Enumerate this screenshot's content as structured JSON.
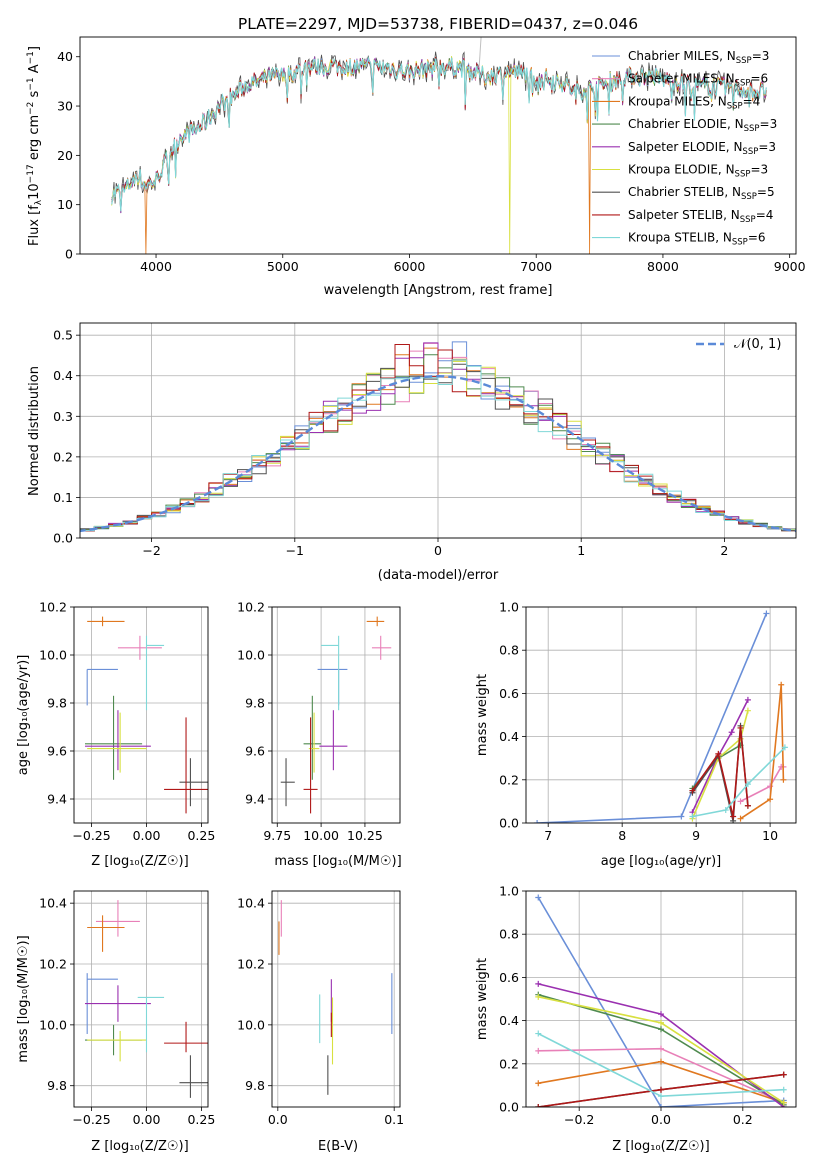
{
  "title": "PLATE=2297, MJD=53738, FIBERID=0437, z=0.046",
  "colors": {
    "Chabrier MILES": "#6a8fd8",
    "Salpeter MILES": "#e880b8",
    "Kroupa MILES": "#e07820",
    "Chabrier ELODIE": "#4f8a4f",
    "Salpeter ELODIE": "#9a30b0",
    "Kroupa ELODIE": "#d8e040",
    "Chabrier STELIB": "#505050",
    "Salpeter STELIB": "#b01818",
    "Kroupa STELIB": "#80d8d8"
  },
  "spectrum": {
    "xlabel": "wavelength [Angstrom, rest frame]",
    "ylabel": "Flux [f",
    "ylabel_sub": "λ",
    "ylabel_rest1": "10",
    "ylabel_exp1": "−17",
    "ylabel_rest2": " erg cm",
    "ylabel_exp2": "−2",
    "ylabel_rest3": " s",
    "ylabel_exp3": "−1",
    "ylabel_rest4": " A",
    "ylabel_exp4": "−1",
    "ylabel_end": "]",
    "xticks": [
      "4000",
      "5000",
      "6000",
      "7000",
      "8000",
      "9000"
    ],
    "yticks": [
      "0",
      "10",
      "20",
      "30",
      "40"
    ],
    "legend": [
      {
        "model": "Chabrier MILES",
        "n": "3"
      },
      {
        "model": "Salpeter MILES",
        "n": "6"
      },
      {
        "model": "Kroupa MILES",
        "n": "4"
      },
      {
        "model": "Chabrier ELODIE",
        "n": "3"
      },
      {
        "model": "Salpeter ELODIE",
        "n": "3"
      },
      {
        "model": "Kroupa ELODIE",
        "n": "3"
      },
      {
        "model": "Chabrier STELIB",
        "n": "5"
      },
      {
        "model": "Salpeter STELIB",
        "n": "4"
      },
      {
        "model": "Kroupa STELIB",
        "n": "6"
      }
    ],
    "legend_n_prefix": "N",
    "legend_n_sub": "SSP"
  },
  "residuals": {
    "xlabel": "(data-model)/error",
    "ylabel": "Normed distribution",
    "legend_label": "𝒩(0, 1)",
    "xticks": [
      "−2",
      "−1",
      "0",
      "1",
      "2"
    ],
    "yticks": [
      "0.0",
      "0.1",
      "0.2",
      "0.3",
      "0.4",
      "0.5"
    ]
  },
  "age_z": {
    "xlabel": "Z [log₁₀(Z/Z☉)]",
    "ylabel": "age  [log₁₀(age/yr)]",
    "xticks": [
      "−0.25",
      "0.00",
      "0.25"
    ],
    "yticks": [
      "9.4",
      "9.6",
      "9.8",
      "10.0",
      "10.2"
    ]
  },
  "age_mass": {
    "xlabel": "mass [log₁₀(M/M☉)]",
    "xticks": [
      "9.75",
      "10.00",
      "10.25"
    ],
    "yticks": [
      "9.4",
      "9.6",
      "9.8",
      "10.0",
      "10.2"
    ]
  },
  "mw_age": {
    "xlabel": "age  [log₁₀(age/yr)]",
    "ylabel": "mass weight",
    "xticks": [
      "7",
      "8",
      "9",
      "10"
    ],
    "yticks": [
      "0.0",
      "0.2",
      "0.4",
      "0.6",
      "0.8",
      "1.0"
    ]
  },
  "mass_z": {
    "xlabel": "Z [log₁₀(Z/Z☉)]",
    "ylabel": "mass [log₁₀(M/M☉)]",
    "xticks": [
      "−0.25",
      "0.00",
      "0.25"
    ],
    "yticks": [
      "9.8",
      "10.0",
      "10.2",
      "10.4"
    ]
  },
  "mass_ebv": {
    "xlabel": "E(B-V)",
    "xticks": [
      "0.0",
      "0.1"
    ],
    "yticks": [
      "9.8",
      "10.0",
      "10.2",
      "10.4"
    ]
  },
  "mw_z": {
    "xlabel": "Z [log₁₀(Z/Z☉)]",
    "ylabel": "mass weight",
    "xticks": [
      "−0.2",
      "0.0",
      "0.2"
    ],
    "yticks": [
      "0.0",
      "0.2",
      "0.4",
      "0.6",
      "0.8",
      "1.0"
    ]
  },
  "chart_data": [
    {
      "type": "line",
      "title": "PLATE=2297, MJD=53738, FIBERID=0437, z=0.046",
      "xlabel": "wavelength [Angstrom, rest frame]",
      "ylabel": "Flux [fλ10−17 erg cm−2 s−1 A−1]",
      "xlim": [
        3400,
        9050
      ],
      "ylim": [
        0,
        44
      ],
      "continuum": {
        "x": [
          3650,
          3750,
          3850,
          3920,
          4000,
          4100,
          4200,
          4300,
          4400,
          4500,
          4600,
          4700,
          4800,
          4900,
          5000,
          5200,
          5400,
          5600,
          5800,
          6000,
          6200,
          6400,
          6600,
          6800,
          7000,
          7200,
          7300,
          7500,
          7700,
          7900,
          8100,
          8300,
          8500,
          8700,
          8820
        ],
        "y": [
          12,
          13,
          16,
          14,
          15,
          20,
          24,
          25,
          27,
          30,
          32,
          34,
          35,
          36,
          36,
          38,
          38,
          38,
          38,
          37,
          38,
          38,
          36,
          37,
          36,
          35,
          33,
          34,
          36,
          36,
          35,
          34,
          34,
          33,
          33
        ]
      },
      "dips": [
        {
          "x": 3920,
          "series": "Kroupa MILES",
          "y": 0
        },
        {
          "x": 6790,
          "series": "Kroupa ELODIE",
          "y": 0
        },
        {
          "x": 7420,
          "series": "Kroupa MILES",
          "y": 0
        }
      ],
      "series": [
        "Chabrier MILES",
        "Salpeter MILES",
        "Kroupa MILES",
        "Chabrier ELODIE",
        "Salpeter ELODIE",
        "Kroupa ELODIE",
        "Chabrier STELIB",
        "Salpeter STELIB",
        "Kroupa STELIB"
      ]
    },
    {
      "type": "histogram",
      "xlabel": "(data-model)/error",
      "ylabel": "Normed distribution",
      "xlim": [
        -2.5,
        2.5
      ],
      "ylim": [
        0,
        0.53
      ],
      "bin_width": 0.1,
      "normal_curve": {
        "mean": 0,
        "sigma": 1
      }
    },
    {
      "type": "scatter",
      "xlabel": "Z [log10(Z/Zsun)]",
      "ylabel": "age [log10(age/yr)]",
      "xlim": [
        -0.33,
        0.28
      ],
      "ylim": [
        9.3,
        10.2
      ],
      "points": [
        {
          "series": "Chabrier MILES",
          "x": -0.27,
          "y": 9.94,
          "xerr": [
            0.0,
            0.14
          ],
          "yerr": [
            0.15,
            0.0
          ]
        },
        {
          "series": "Salpeter MILES",
          "x": -0.03,
          "y": 10.03,
          "xerr": [
            0.1,
            0.1
          ],
          "yerr": [
            0.05,
            0.05
          ]
        },
        {
          "series": "Kroupa MILES",
          "x": -0.2,
          "y": 10.14,
          "xerr": [
            0.07,
            0.1
          ],
          "yerr": [
            0.02,
            0.02
          ]
        },
        {
          "series": "Chabrier ELODIE",
          "x": -0.15,
          "y": 9.63,
          "xerr": [
            0.13,
            0.13
          ],
          "yerr": [
            0.15,
            0.2
          ]
        },
        {
          "series": "Salpeter ELODIE",
          "x": -0.13,
          "y": 9.62,
          "xerr": [
            0.15,
            0.15
          ],
          "yerr": [
            0.1,
            0.15
          ]
        },
        {
          "series": "Kroupa ELODIE",
          "x": -0.12,
          "y": 9.61,
          "xerr": [
            0.15,
            0.12
          ],
          "yerr": [
            0.1,
            0.15
          ]
        },
        {
          "series": "Chabrier STELIB",
          "x": 0.2,
          "y": 9.47,
          "xerr": [
            0.05,
            0.08
          ],
          "yerr": [
            0.1,
            0.1
          ]
        },
        {
          "series": "Salpeter STELIB",
          "x": 0.18,
          "y": 9.44,
          "xerr": [
            0.1,
            0.1
          ],
          "yerr": [
            0.1,
            0.3
          ]
        },
        {
          "series": "Kroupa STELIB",
          "x": 0.0,
          "y": 10.04,
          "xerr": [
            0.0,
            0.08
          ],
          "yerr": [
            0.27,
            0.04
          ]
        }
      ]
    },
    {
      "type": "scatter",
      "xlabel": "mass [log10(M/Msun)]",
      "ylim": [
        9.3,
        10.2
      ],
      "xlim": [
        9.72,
        10.45
      ],
      "points": [
        {
          "series": "Chabrier MILES",
          "x": 10.1,
          "y": 9.94,
          "xerr": [
            0.12,
            0.05
          ],
          "yerr": [
            0.15,
            0.0
          ]
        },
        {
          "series": "Salpeter MILES",
          "x": 10.34,
          "y": 10.03,
          "xerr": [
            0.05,
            0.06
          ],
          "yerr": [
            0.05,
            0.05
          ]
        },
        {
          "series": "Kroupa MILES",
          "x": 10.32,
          "y": 10.14,
          "xerr": [
            0.06,
            0.04
          ],
          "yerr": [
            0.02,
            0.02
          ]
        },
        {
          "series": "Chabrier ELODIE",
          "x": 9.95,
          "y": 9.63,
          "xerr": [
            0.05,
            0.05
          ],
          "yerr": [
            0.15,
            0.2
          ]
        },
        {
          "series": "Salpeter ELODIE",
          "x": 10.07,
          "y": 9.62,
          "xerr": [
            0.08,
            0.08
          ],
          "yerr": [
            0.1,
            0.15
          ]
        },
        {
          "series": "Kroupa ELODIE",
          "x": 9.96,
          "y": 9.61,
          "xerr": [
            0.03,
            0.03
          ],
          "yerr": [
            0.1,
            0.15
          ]
        },
        {
          "series": "Chabrier STELIB",
          "x": 9.8,
          "y": 9.47,
          "xerr": [
            0.03,
            0.05
          ],
          "yerr": [
            0.1,
            0.1
          ]
        },
        {
          "series": "Salpeter STELIB",
          "x": 9.94,
          "y": 9.44,
          "xerr": [
            0.04,
            0.04
          ],
          "yerr": [
            0.1,
            0.3
          ]
        },
        {
          "series": "Kroupa STELIB",
          "x": 10.1,
          "y": 10.04,
          "xerr": [
            0.1,
            0.0
          ],
          "yerr": [
            0.27,
            0.04
          ]
        }
      ]
    },
    {
      "type": "line",
      "xlabel": "age [log10(age/yr)]",
      "ylabel": "mass weight",
      "xlim": [
        6.7,
        10.35
      ],
      "ylim": [
        0,
        1
      ],
      "series": [
        {
          "name": "Chabrier MILES",
          "x": [
            6.85,
            8.8,
            9.95
          ],
          "y": [
            0.0,
            0.03,
            0.97
          ]
        },
        {
          "name": "Salpeter MILES",
          "x": [
            9.6,
            10.0,
            10.15,
            10.18
          ],
          "y": [
            0.1,
            0.17,
            0.26,
            0.26
          ]
        },
        {
          "name": "Kroupa MILES",
          "x": [
            9.6,
            10.0,
            10.15,
            10.18
          ],
          "y": [
            0.02,
            0.11,
            0.64,
            0.2
          ]
        },
        {
          "name": "Chabrier ELODIE",
          "x": [
            8.95,
            9.3,
            9.6
          ],
          "y": [
            0.16,
            0.3,
            0.36
          ]
        },
        {
          "name": "Salpeter ELODIE",
          "x": [
            8.95,
            9.3,
            9.48,
            9.7
          ],
          "y": [
            0.05,
            0.31,
            0.42,
            0.57
          ]
        },
        {
          "name": "Kroupa ELODIE",
          "x": [
            8.95,
            9.3,
            9.6,
            9.7
          ],
          "y": [
            0.02,
            0.3,
            0.39,
            0.52
          ]
        },
        {
          "name": "Chabrier STELIB",
          "x": [
            8.95,
            9.3,
            9.5,
            9.6,
            9.7
          ],
          "y": [
            0.14,
            0.31,
            0.01,
            0.45,
            0.08
          ]
        },
        {
          "name": "Salpeter STELIB",
          "x": [
            8.95,
            9.3,
            9.5,
            9.6,
            9.7
          ],
          "y": [
            0.15,
            0.32,
            0.03,
            0.44,
            0.08
          ]
        },
        {
          "name": "Kroupa STELIB",
          "x": [
            8.95,
            9.4,
            9.7,
            10.2
          ],
          "y": [
            0.03,
            0.06,
            0.18,
            0.35
          ]
        }
      ]
    },
    {
      "type": "scatter",
      "xlabel": "Z [log10(Z/Zsun)]",
      "ylabel": "mass [log10(M/Msun)]",
      "xlim": [
        -0.33,
        0.28
      ],
      "ylim": [
        9.73,
        10.44
      ],
      "points": [
        {
          "series": "Chabrier MILES",
          "x": -0.27,
          "y": 10.15,
          "xerr": [
            0.0,
            0.14
          ],
          "yerr": [
            0.18,
            0.02
          ]
        },
        {
          "series": "Salpeter MILES",
          "x": -0.13,
          "y": 10.34,
          "xerr": [
            0.1,
            0.1
          ],
          "yerr": [
            0.05,
            0.07
          ]
        },
        {
          "series": "Kroupa MILES",
          "x": -0.2,
          "y": 10.32,
          "xerr": [
            0.07,
            0.1
          ],
          "yerr": [
            0.08,
            0.04
          ]
        },
        {
          "series": "Chabrier ELODIE",
          "x": -0.15,
          "y": 9.95,
          "xerr": [
            0.13,
            0.13
          ],
          "yerr": [
            0.05,
            0.05
          ]
        },
        {
          "series": "Salpeter ELODIE",
          "x": -0.13,
          "y": 10.07,
          "xerr": [
            0.15,
            0.15
          ],
          "yerr": [
            0.06,
            0.06
          ]
        },
        {
          "series": "Kroupa ELODIE",
          "x": -0.12,
          "y": 9.95,
          "xerr": [
            0.15,
            0.12
          ],
          "yerr": [
            0.07,
            0.03
          ]
        },
        {
          "series": "Chabrier STELIB",
          "x": 0.2,
          "y": 9.81,
          "xerr": [
            0.05,
            0.08
          ],
          "yerr": [
            0.05,
            0.09
          ]
        },
        {
          "series": "Salpeter STELIB",
          "x": 0.18,
          "y": 9.94,
          "xerr": [
            0.1,
            0.1
          ],
          "yerr": [
            0.03,
            0.07
          ]
        },
        {
          "series": "Kroupa STELIB",
          "x": 0.0,
          "y": 10.09,
          "xerr": [
            0.04,
            0.08
          ],
          "yerr": [
            0.18,
            0.0
          ]
        }
      ]
    },
    {
      "type": "scatter",
      "xlabel": "E(B-V)",
      "xlim": [
        -0.005,
        0.105
      ],
      "ylim": [
        9.73,
        10.44
      ],
      "points": [
        {
          "series": "Chabrier MILES",
          "x": 0.098,
          "y": 10.07,
          "yerr": [
            0.1,
            0.1
          ]
        },
        {
          "series": "Salpeter MILES",
          "x": 0.003,
          "y": 10.34,
          "yerr": [
            0.05,
            0.07
          ]
        },
        {
          "series": "Kroupa MILES",
          "x": 0.001,
          "y": 10.3,
          "yerr": [
            0.07,
            0.04
          ]
        },
        {
          "series": "Salpeter ELODIE",
          "x": 0.046,
          "y": 10.07,
          "yerr": [
            0.06,
            0.08
          ]
        },
        {
          "series": "Kroupa ELODIE",
          "x": 0.047,
          "y": 9.95,
          "yerr": [
            0.08,
            0.14
          ]
        },
        {
          "series": "Chabrier STELIB",
          "x": 0.043,
          "y": 9.83,
          "yerr": [
            0.06,
            0.07
          ]
        },
        {
          "series": "Salpeter STELIB",
          "x": 0.046,
          "y": 9.99,
          "yerr": [
            0.03,
            0.05
          ]
        },
        {
          "series": "Kroupa STELIB",
          "x": 0.036,
          "y": 10.03,
          "yerr": [
            0.09,
            0.07
          ]
        }
      ]
    },
    {
      "type": "line",
      "xlabel": "Z [log10(Z/Zsun)]",
      "ylabel": "mass weight",
      "xlim": [
        -0.33,
        0.33
      ],
      "ylim": [
        0,
        1
      ],
      "series": [
        {
          "name": "Chabrier MILES",
          "x": [
            -0.3,
            0.0,
            0.3
          ],
          "y": [
            0.97,
            0.0,
            0.03
          ]
        },
        {
          "name": "Salpeter MILES",
          "x": [
            -0.3,
            0.0,
            0.3
          ],
          "y": [
            0.26,
            0.27,
            0.02
          ]
        },
        {
          "name": "Kroupa MILES",
          "x": [
            -0.3,
            0.0,
            0.3
          ],
          "y": [
            0.11,
            0.21,
            0.02
          ]
        },
        {
          "name": "Chabrier ELODIE",
          "x": [
            -0.3,
            0.0,
            0.3
          ],
          "y": [
            0.52,
            0.36,
            0.01
          ]
        },
        {
          "name": "Salpeter ELODIE",
          "x": [
            -0.3,
            0.0,
            0.3
          ],
          "y": [
            0.57,
            0.43,
            0.0
          ]
        },
        {
          "name": "Kroupa ELODIE",
          "x": [
            -0.3,
            0.0,
            0.3
          ],
          "y": [
            0.51,
            0.39,
            0.02
          ]
        },
        {
          "name": "Chabrier STELIB",
          "x": [
            -0.3,
            0.0,
            0.3
          ],
          "y": [
            0.0,
            0.08,
            0.15
          ]
        },
        {
          "name": "Salpeter STELIB",
          "x": [
            -0.3,
            0.0,
            0.3
          ],
          "y": [
            0.0,
            0.08,
            0.15
          ]
        },
        {
          "name": "Kroupa STELIB",
          "x": [
            -0.3,
            0.0,
            0.3
          ],
          "y": [
            0.34,
            0.05,
            0.08
          ]
        }
      ]
    }
  ]
}
